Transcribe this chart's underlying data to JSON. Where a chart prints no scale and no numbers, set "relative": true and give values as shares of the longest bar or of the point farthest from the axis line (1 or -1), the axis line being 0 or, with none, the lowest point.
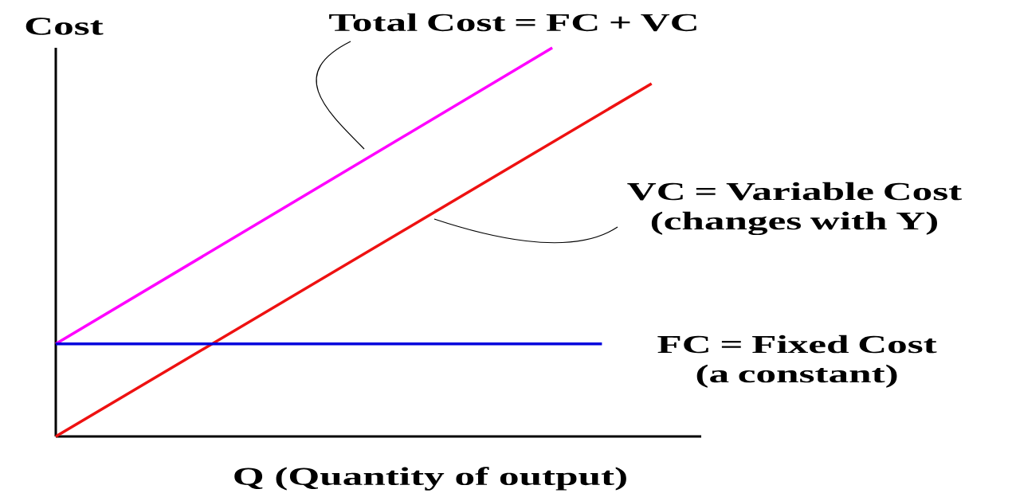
{
  "chart_data": {
    "type": "line",
    "relative": true,
    "xlabel": "Q (Quantity of output)",
    "ylabel": "Cost",
    "categories": [
      null,
      null,
      null,
      null,
      null,
      null,
      null,
      null,
      null,
      null,
      null,
      null,
      null
    ],
    "annotations": [
      "Total Cost = FC + VC",
      "VC = Variable Cost (changes with Y)"
    ],
    "series": [
      {
        "values": [
          0.238,
          null,
          null,
          null,
          null,
          null,
          null,
          null,
          null,
          null,
          1,
          null,
          null
        ],
        "color": "#ff00ff"
      },
      {
        "values": [
          0,
          null,
          null,
          null,
          null,
          null,
          null,
          null,
          null,
          null,
          null,
          null,
          0.908
        ],
        "color": "#ee1111"
      },
      {
        "name": "FC = Fixed Cost (a constant)",
        "values": [
          0.238,
          null,
          null,
          null,
          null,
          null,
          null,
          null,
          null,
          null,
          null,
          0.238,
          null
        ],
        "color": "#0000dd"
      }
    ],
    "marker": "none",
    "line_style": "solid"
  }
}
